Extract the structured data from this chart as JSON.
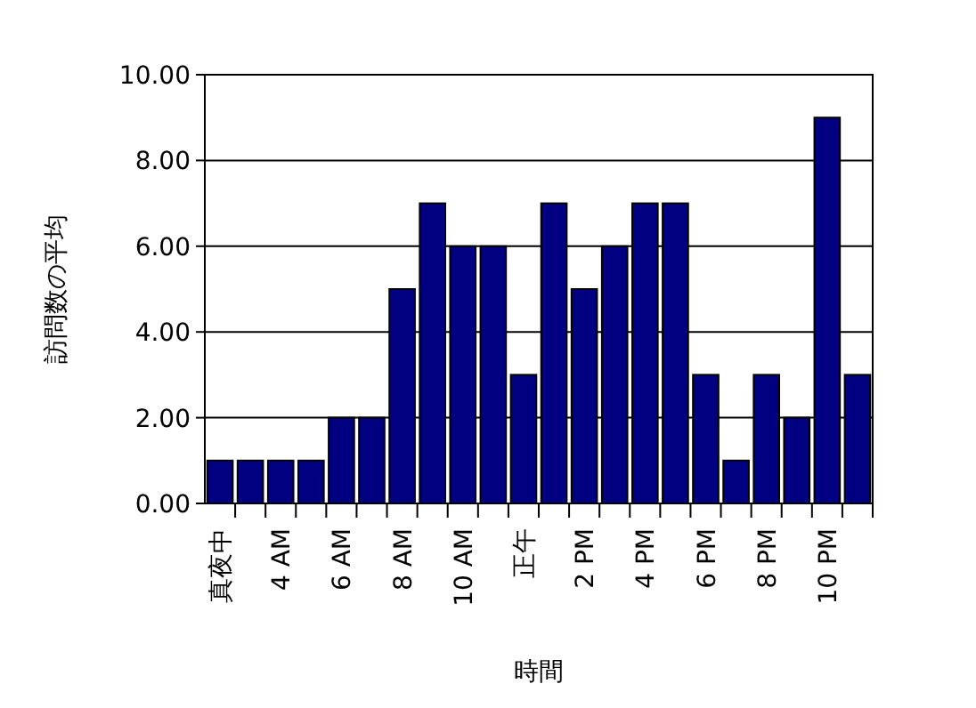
{
  "chart_data": {
    "type": "bar",
    "xlabel": "時間",
    "ylabel": "訪問数の平均",
    "categories": [
      "真夜中",
      null,
      "4 AM",
      null,
      "6 AM",
      null,
      "8 AM",
      null,
      "10 AM",
      null,
      "正午",
      null,
      "2 PM",
      null,
      "4 PM",
      null,
      "6 PM",
      null,
      "8 PM",
      null,
      "10 PM",
      null
    ],
    "values": [
      1,
      1,
      1,
      1,
      2,
      2,
      5,
      7,
      6,
      6,
      3,
      7,
      5,
      6,
      7,
      7,
      3,
      1,
      3,
      2,
      9,
      3
    ],
    "color": "#000080",
    "ylim": [
      0,
      10
    ],
    "yticks": [
      {
        "value": 0,
        "label": "0.00"
      },
      {
        "value": 2,
        "label": "2.00"
      },
      {
        "value": 4,
        "label": "4.00"
      },
      {
        "value": 6,
        "label": "6.00"
      },
      {
        "value": 8,
        "label": "8.00"
      },
      {
        "value": 10,
        "label": "10.00"
      }
    ],
    "grid": "y"
  }
}
